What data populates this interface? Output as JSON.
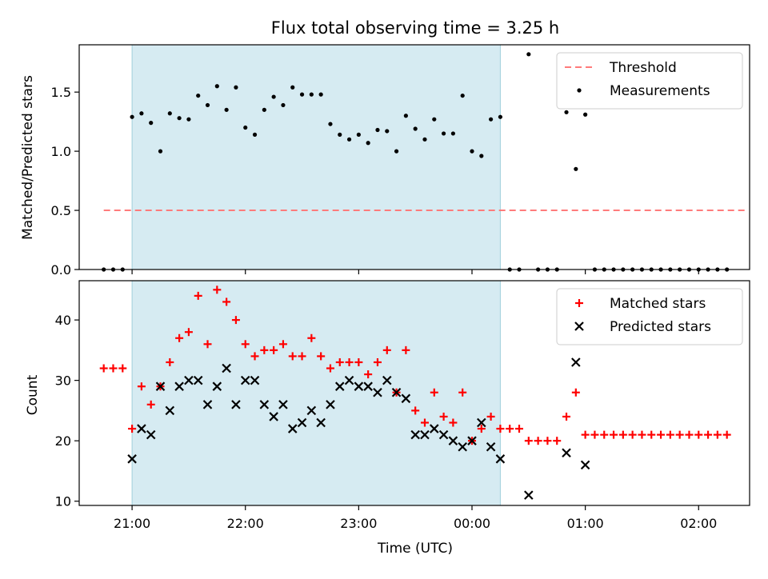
{
  "title": "Flux total observing time = 3.25 h",
  "chart_data": [
    {
      "type": "scatter",
      "ylabel": "Matched/Predicted stars",
      "ylim": [
        0,
        1.9
      ],
      "yticks": [
        0.0,
        0.5,
        1.0,
        1.5
      ],
      "ytick_labels": [
        "0.0",
        "0.5",
        "1.0",
        "1.5"
      ],
      "xlim": [
        "20:32",
        "02:27"
      ],
      "shaded_span": [
        "21:00",
        "00:15"
      ],
      "legend_position": "top-right",
      "threshold": {
        "name": "Threshold",
        "value": 0.5,
        "x_range": [
          "20:45",
          "02:25"
        ],
        "color": "#ff7b7b"
      },
      "series": [
        {
          "name": "Measurements",
          "color": "#000000",
          "points": [
            [
              "20:45",
              0.0
            ],
            [
              "20:50",
              0.0
            ],
            [
              "20:55",
              0.0
            ],
            [
              "21:00",
              1.29
            ],
            [
              "21:05",
              1.32
            ],
            [
              "21:10",
              1.24
            ],
            [
              "21:15",
              1.0
            ],
            [
              "21:20",
              1.32
            ],
            [
              "21:25",
              1.28
            ],
            [
              "21:30",
              1.27
            ],
            [
              "21:35",
              1.47
            ],
            [
              "21:40",
              1.39
            ],
            [
              "21:45",
              1.55
            ],
            [
              "21:50",
              1.35
            ],
            [
              "21:55",
              1.54
            ],
            [
              "22:00",
              1.2
            ],
            [
              "22:05",
              1.14
            ],
            [
              "22:10",
              1.35
            ],
            [
              "22:15",
              1.46
            ],
            [
              "22:20",
              1.39
            ],
            [
              "22:25",
              1.54
            ],
            [
              "22:30",
              1.48
            ],
            [
              "22:35",
              1.48
            ],
            [
              "22:40",
              1.48
            ],
            [
              "22:45",
              1.23
            ],
            [
              "22:50",
              1.14
            ],
            [
              "22:55",
              1.1
            ],
            [
              "23:00",
              1.14
            ],
            [
              "23:05",
              1.07
            ],
            [
              "23:10",
              1.18
            ],
            [
              "23:15",
              1.17
            ],
            [
              "23:20",
              1.0
            ],
            [
              "23:25",
              1.3
            ],
            [
              "23:30",
              1.19
            ],
            [
              "23:35",
              1.1
            ],
            [
              "23:40",
              1.27
            ],
            [
              "23:45",
              1.15
            ],
            [
              "23:50",
              1.15
            ],
            [
              "23:55",
              1.47
            ],
            [
              "00:00",
              1.0
            ],
            [
              "00:05",
              0.96
            ],
            [
              "00:10",
              1.27
            ],
            [
              "00:15",
              1.29
            ],
            [
              "00:20",
              0.0
            ],
            [
              "00:25",
              0.0
            ],
            [
              "00:30",
              1.82
            ],
            [
              "00:35",
              0.0
            ],
            [
              "00:40",
              0.0
            ],
            [
              "00:45",
              0.0
            ],
            [
              "00:50",
              1.33
            ],
            [
              "00:55",
              0.85
            ],
            [
              "01:00",
              1.31
            ],
            [
              "01:05",
              0.0
            ],
            [
              "01:10",
              0.0
            ],
            [
              "01:15",
              0.0
            ],
            [
              "01:20",
              0.0
            ],
            [
              "01:25",
              0.0
            ],
            [
              "01:30",
              0.0
            ],
            [
              "01:35",
              0.0
            ],
            [
              "01:40",
              0.0
            ],
            [
              "01:45",
              0.0
            ],
            [
              "01:50",
              0.0
            ],
            [
              "01:55",
              0.0
            ],
            [
              "02:00",
              0.0
            ],
            [
              "02:05",
              0.0
            ],
            [
              "02:10",
              0.0
            ],
            [
              "02:15",
              0.0
            ]
          ]
        }
      ]
    },
    {
      "type": "scatter",
      "xlabel": "Time (UTC)",
      "ylabel": "Count",
      "ylim": [
        9.3,
        46.5
      ],
      "yticks": [
        10,
        20,
        30,
        40
      ],
      "ytick_labels": [
        "10",
        "20",
        "30",
        "40"
      ],
      "xlim": [
        "20:32",
        "02:27"
      ],
      "xticks": [
        "21:00",
        "22:00",
        "23:00",
        "00:00",
        "01:00",
        "02:00"
      ],
      "shaded_span": [
        "21:00",
        "00:15"
      ],
      "legend_position": "top-right",
      "series": [
        {
          "name": "Matched stars",
          "color": "#ff0000",
          "marker": "+",
          "points": [
            [
              "20:45",
              32
            ],
            [
              "20:50",
              32
            ],
            [
              "20:55",
              32
            ],
            [
              "21:00",
              22
            ],
            [
              "21:05",
              29
            ],
            [
              "21:10",
              26
            ],
            [
              "21:15",
              29
            ],
            [
              "21:20",
              33
            ],
            [
              "21:25",
              37
            ],
            [
              "21:30",
              38
            ],
            [
              "21:35",
              44
            ],
            [
              "21:40",
              36
            ],
            [
              "21:45",
              45
            ],
            [
              "21:50",
              43
            ],
            [
              "21:55",
              40
            ],
            [
              "22:00",
              36
            ],
            [
              "22:05",
              34
            ],
            [
              "22:10",
              35
            ],
            [
              "22:15",
              35
            ],
            [
              "22:20",
              36
            ],
            [
              "22:25",
              34
            ],
            [
              "22:30",
              34
            ],
            [
              "22:35",
              37
            ],
            [
              "22:40",
              34
            ],
            [
              "22:45",
              32
            ],
            [
              "22:50",
              33
            ],
            [
              "22:55",
              33
            ],
            [
              "23:00",
              33
            ],
            [
              "23:05",
              31
            ],
            [
              "23:10",
              33
            ],
            [
              "23:15",
              35
            ],
            [
              "23:20",
              28
            ],
            [
              "23:25",
              35
            ],
            [
              "23:30",
              25
            ],
            [
              "23:35",
              23
            ],
            [
              "23:40",
              28
            ],
            [
              "23:45",
              24
            ],
            [
              "23:50",
              23
            ],
            [
              "23:55",
              28
            ],
            [
              "00:00",
              20
            ],
            [
              "00:05",
              22
            ],
            [
              "00:10",
              24
            ],
            [
              "00:15",
              22
            ],
            [
              "00:20",
              22
            ],
            [
              "00:25",
              22
            ],
            [
              "00:30",
              20
            ],
            [
              "00:35",
              20
            ],
            [
              "00:40",
              20
            ],
            [
              "00:45",
              20
            ],
            [
              "00:50",
              24
            ],
            [
              "00:55",
              28
            ],
            [
              "01:00",
              21
            ],
            [
              "01:05",
              21
            ],
            [
              "01:10",
              21
            ],
            [
              "01:15",
              21
            ],
            [
              "01:20",
              21
            ],
            [
              "01:25",
              21
            ],
            [
              "01:30",
              21
            ],
            [
              "01:35",
              21
            ],
            [
              "01:40",
              21
            ],
            [
              "01:45",
              21
            ],
            [
              "01:50",
              21
            ],
            [
              "01:55",
              21
            ],
            [
              "02:00",
              21
            ],
            [
              "02:05",
              21
            ],
            [
              "02:10",
              21
            ],
            [
              "02:15",
              21
            ]
          ]
        },
        {
          "name": "Predicted stars",
          "color": "#000000",
          "marker": "x",
          "points": [
            [
              "21:00",
              17
            ],
            [
              "21:05",
              22
            ],
            [
              "21:10",
              21
            ],
            [
              "21:15",
              29
            ],
            [
              "21:20",
              25
            ],
            [
              "21:25",
              29
            ],
            [
              "21:30",
              30
            ],
            [
              "21:35",
              30
            ],
            [
              "21:40",
              26
            ],
            [
              "21:45",
              29
            ],
            [
              "21:50",
              32
            ],
            [
              "21:55",
              26
            ],
            [
              "22:00",
              30
            ],
            [
              "22:05",
              30
            ],
            [
              "22:10",
              26
            ],
            [
              "22:15",
              24
            ],
            [
              "22:20",
              26
            ],
            [
              "22:25",
              22
            ],
            [
              "22:30",
              23
            ],
            [
              "22:35",
              25
            ],
            [
              "22:40",
              23
            ],
            [
              "22:45",
              26
            ],
            [
              "22:50",
              29
            ],
            [
              "22:55",
              30
            ],
            [
              "23:00",
              29
            ],
            [
              "23:05",
              29
            ],
            [
              "23:10",
              28
            ],
            [
              "23:15",
              30
            ],
            [
              "23:20",
              28
            ],
            [
              "23:25",
              27
            ],
            [
              "23:30",
              21
            ],
            [
              "23:35",
              21
            ],
            [
              "23:40",
              22
            ],
            [
              "23:45",
              21
            ],
            [
              "23:50",
              20
            ],
            [
              "23:55",
              19
            ],
            [
              "00:00",
              20
            ],
            [
              "00:05",
              23
            ],
            [
              "00:10",
              19
            ],
            [
              "00:15",
              17
            ],
            [
              "00:30",
              11
            ],
            [
              "00:55",
              33
            ],
            [
              "00:50",
              18
            ],
            [
              "01:00",
              16
            ]
          ]
        }
      ]
    }
  ]
}
